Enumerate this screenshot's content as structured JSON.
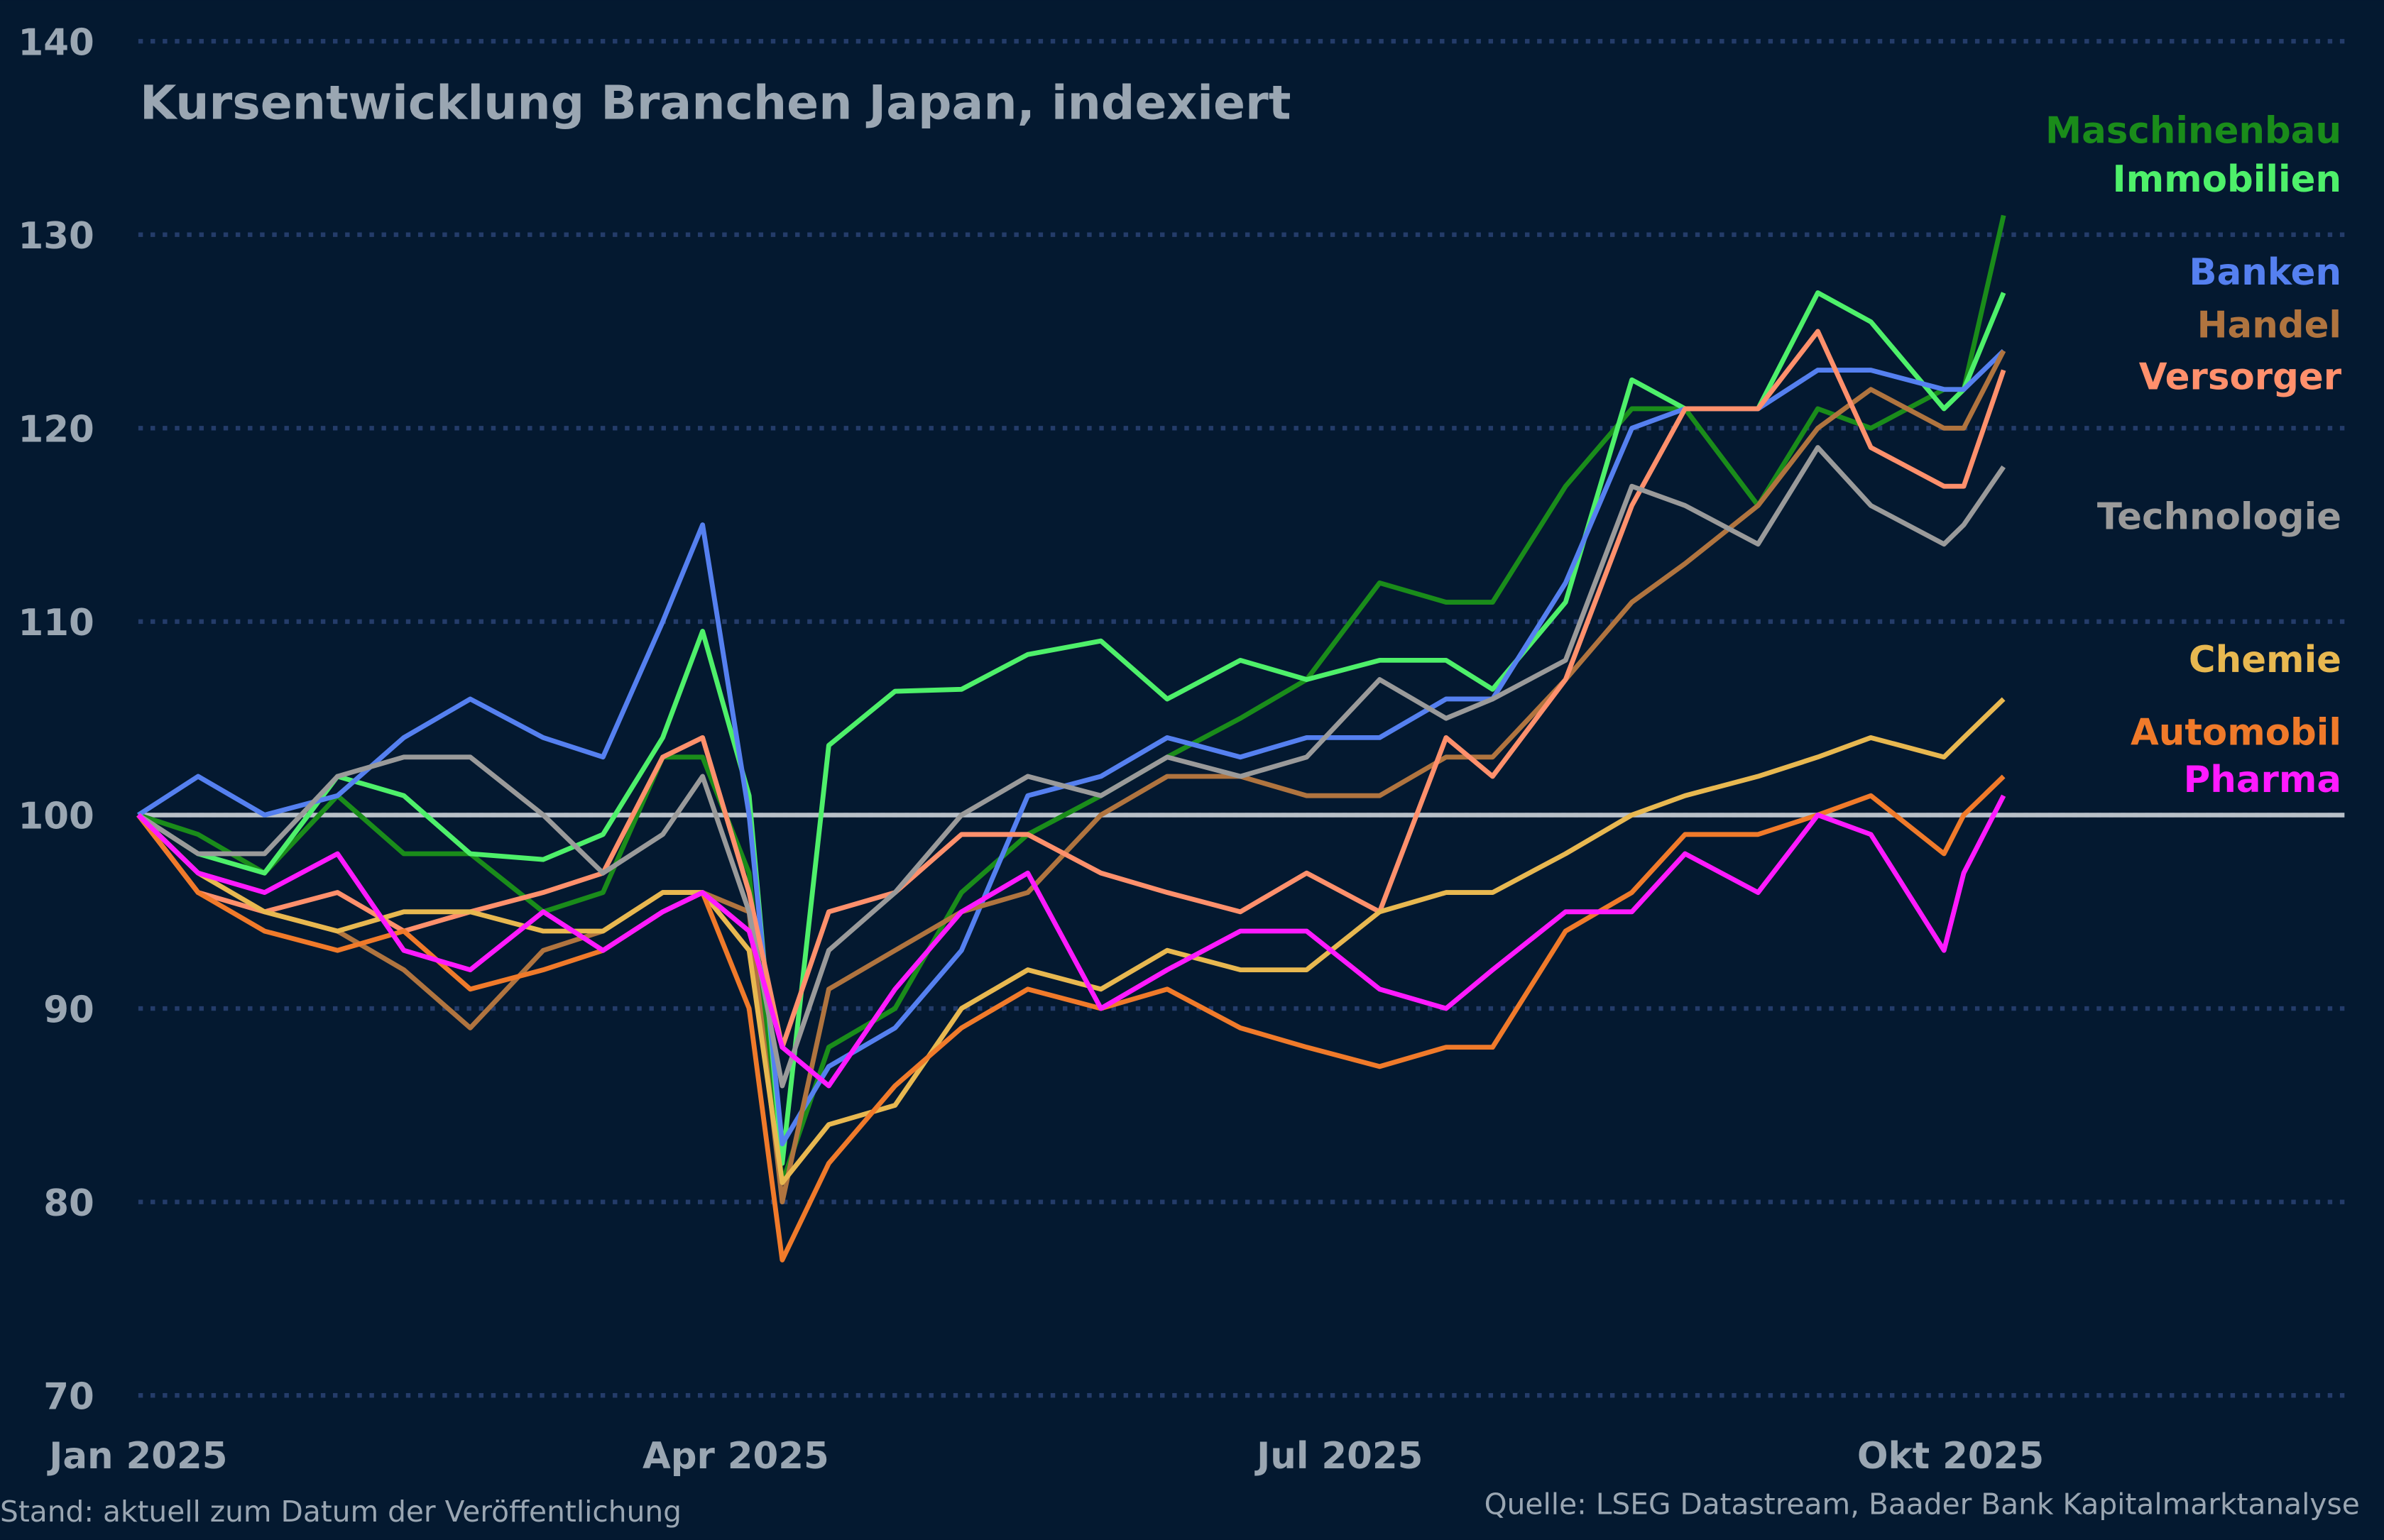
{
  "chart_data": {
    "type": "line",
    "title": "Kursentwicklung Branchen Japan, indexiert",
    "xlabel": "",
    "ylabel": "",
    "ylim": [
      70,
      140
    ],
    "yticks": [
      "70",
      "80",
      "90",
      "100",
      "110",
      "120",
      "130",
      "140"
    ],
    "xticks": [
      {
        "date": "2025-01-01",
        "label": "Jan 2025"
      },
      {
        "date": "2025-04-01",
        "label": "Apr 2025"
      },
      {
        "date": "2025-07-01",
        "label": "Jul 2025"
      },
      {
        "date": "2025-10-01",
        "label": "Okt 2025"
      }
    ],
    "grid": "horizontal dotted",
    "legend": "right, labels at line ends",
    "baseline": {
      "value": 100,
      "color": "#b9c0c8"
    },
    "x": [
      "2025-01-01",
      "2025-01-10",
      "2025-01-20",
      "2025-01-31",
      "2025-02-10",
      "2025-02-20",
      "2025-03-03",
      "2025-03-12",
      "2025-03-21",
      "2025-03-27",
      "2025-04-03",
      "2025-04-08",
      "2025-04-15",
      "2025-04-25",
      "2025-05-05",
      "2025-05-15",
      "2025-05-26",
      "2025-06-05",
      "2025-06-16",
      "2025-06-26",
      "2025-07-07",
      "2025-07-17",
      "2025-07-24",
      "2025-08-04",
      "2025-08-14",
      "2025-08-22",
      "2025-09-02",
      "2025-09-11",
      "2025-09-19",
      "2025-09-30",
      "2025-10-03",
      "2025-10-09"
    ],
    "series": [
      {
        "name": "Maschinenbau",
        "color": "#1a8c1a",
        "values": [
          100,
          99,
          97,
          101,
          98,
          98,
          95,
          96,
          103,
          103,
          97,
          81,
          88,
          90,
          96,
          99,
          101,
          103,
          105,
          107,
          112,
          111,
          111,
          117,
          121,
          121,
          116,
          121,
          120,
          122,
          122,
          131
        ]
      },
      {
        "name": "Immobilien",
        "color": "#4ef06a",
        "values": [
          100,
          98,
          97,
          102,
          101,
          98,
          97.7,
          99,
          104,
          109.5,
          101,
          82,
          103.6,
          106.4,
          106.5,
          108.3,
          109,
          106,
          108,
          107,
          108,
          108,
          106.5,
          111,
          122.5,
          121,
          121,
          127,
          125.5,
          121,
          122,
          127
        ]
      },
      {
        "name": "Banken",
        "color": "#5580f0",
        "values": [
          100,
          102,
          100,
          101,
          104,
          106,
          104,
          103,
          110,
          115,
          100,
          83,
          87,
          89,
          93,
          101,
          102,
          104,
          103,
          104,
          104,
          106,
          106,
          112,
          120,
          121,
          121,
          123,
          123,
          122,
          122,
          124
        ]
      },
      {
        "name": "Handel",
        "color": "#b0743f",
        "values": [
          100,
          96,
          95,
          94,
          92,
          89,
          93,
          94,
          96,
          96,
          95,
          80,
          91,
          93,
          95,
          96,
          100,
          102,
          102,
          101,
          101,
          103,
          103,
          107,
          111,
          113,
          116,
          120,
          122,
          120,
          120,
          124
        ]
      },
      {
        "name": "Versorger",
        "color": "#ff906c",
        "values": [
          100,
          96,
          95,
          96,
          94,
          95,
          96,
          97,
          103,
          104,
          96,
          88,
          95,
          96,
          99,
          99,
          97,
          96,
          95,
          97,
          95,
          104,
          102,
          107,
          116,
          121,
          121,
          125,
          119,
          117,
          117,
          123
        ]
      },
      {
        "name": "Technologie",
        "color": "#9a9a9a",
        "values": [
          100,
          98,
          98,
          102,
          103,
          103,
          100,
          97,
          99,
          102,
          95,
          86,
          93,
          96,
          100,
          102,
          101,
          103,
          102,
          103,
          107,
          105,
          106,
          108,
          117,
          116,
          114,
          119,
          116,
          114,
          115,
          118
        ]
      },
      {
        "name": "Chemie",
        "color": "#e8b850",
        "values": [
          100,
          97,
          95,
          94,
          95,
          95,
          94,
          94,
          96,
          96,
          93,
          81,
          84,
          85,
          90,
          92,
          91,
          93,
          92,
          92,
          95,
          96,
          96,
          98,
          100,
          101,
          102,
          103,
          104,
          103,
          104,
          106
        ]
      },
      {
        "name": "Automobil",
        "color": "#f07a2a",
        "values": [
          100,
          96,
          94,
          93,
          94,
          91,
          92,
          93,
          95,
          96,
          90,
          77,
          82,
          86,
          89,
          91,
          90,
          91,
          89,
          88,
          87,
          88,
          88,
          94,
          96,
          99,
          99,
          100,
          101,
          98,
          100,
          102
        ]
      },
      {
        "name": "Pharma",
        "color": "#ff1aff",
        "values": [
          100,
          97,
          96,
          98,
          93,
          92,
          95,
          93,
          95,
          96,
          94,
          88,
          86,
          91,
          95,
          97,
          90,
          92,
          94,
          94,
          91,
          90,
          92,
          95,
          95,
          98,
          96,
          100,
          99,
          93,
          97,
          101
        ]
      }
    ]
  },
  "footer": {
    "left": "Stand: aktuell zum Datum der Veröffentlichung",
    "right": "Quelle: LSEG Datastream, Baader Bank Kapitalmarktanalyse"
  }
}
